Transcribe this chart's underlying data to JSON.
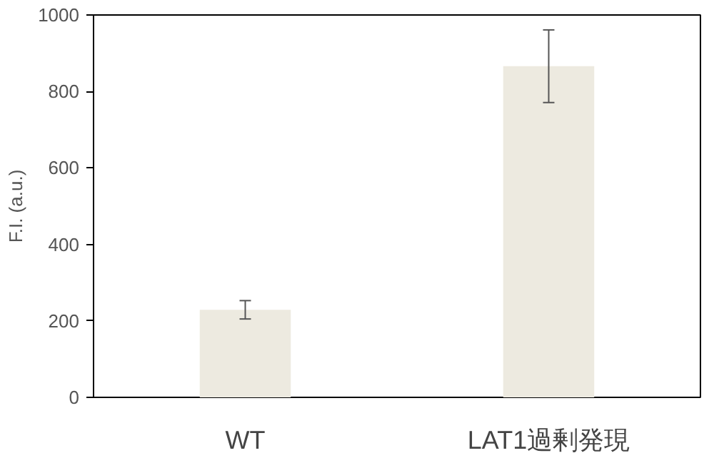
{
  "chart_data": {
    "type": "bar",
    "ylabel": "F.I. (a.u.)",
    "categories": [
      "WT",
      "LAT1過剰発現"
    ],
    "values": [
      229,
      866
    ],
    "errors": [
      24,
      95
    ],
    "color": "#edeae0",
    "ylim": [
      0,
      1000
    ],
    "yticks": [
      0,
      200,
      400,
      600,
      800,
      1000
    ],
    "grid": false
  }
}
